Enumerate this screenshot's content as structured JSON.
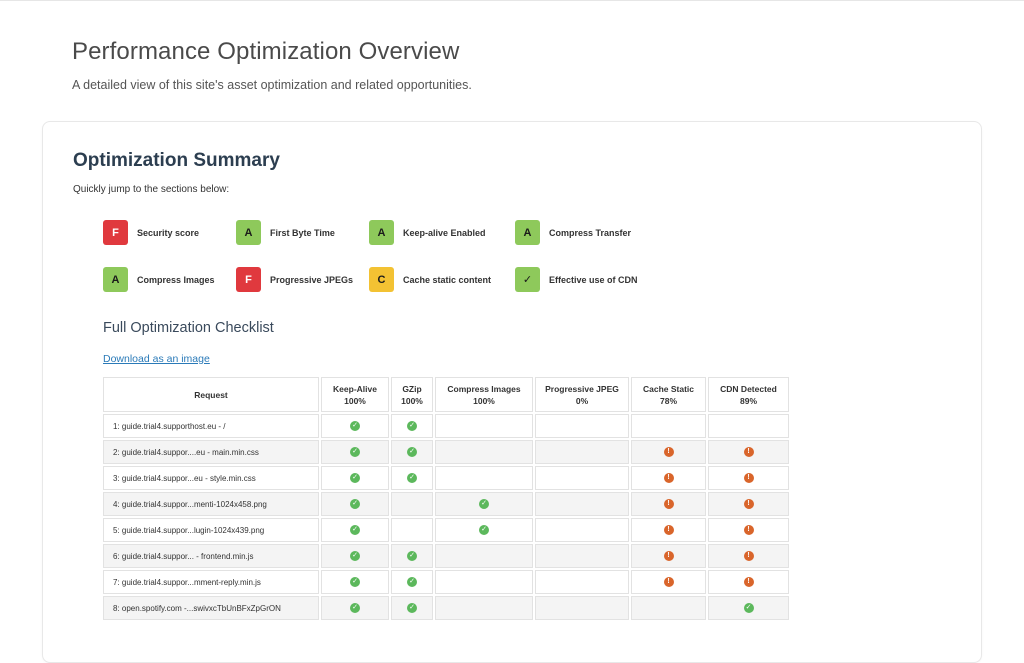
{
  "header": {
    "title": "Performance Optimization Overview",
    "subtitle": "A detailed view of this site's asset optimization and related opportunities."
  },
  "summary": {
    "title": "Optimization Summary",
    "subtitle": "Quickly jump to the sections below:",
    "grades": [
      {
        "grade": "F",
        "label": "Security score",
        "color": "#e0393e"
      },
      {
        "grade": "A",
        "label": "First Byte Time",
        "color": "#8ec95b"
      },
      {
        "grade": "A",
        "label": "Keep-alive Enabled",
        "color": "#8ec95b"
      },
      {
        "grade": "A",
        "label": "Compress Transfer",
        "color": "#8ec95b"
      },
      {
        "grade": "A",
        "label": "Compress Images",
        "color": "#8ec95b"
      },
      {
        "grade": "F",
        "label": "Progressive JPEGs",
        "color": "#e0393e"
      },
      {
        "grade": "C",
        "label": "Cache static content",
        "color": "#f3c233"
      },
      {
        "grade": "✓",
        "label": "Effective use of CDN",
        "color": "#8ec95b"
      }
    ]
  },
  "checklist": {
    "title": "Full Optimization Checklist",
    "download_label": "Download as an image",
    "columns": [
      {
        "name": "Request",
        "score": ""
      },
      {
        "name": "Keep-Alive",
        "score": "100%"
      },
      {
        "name": "GZip",
        "score": "100%"
      },
      {
        "name": "Compress Images",
        "score": "100%"
      },
      {
        "name": "Progressive JPEG",
        "score": "0%"
      },
      {
        "name": "Cache Static",
        "score": "78%"
      },
      {
        "name": "CDN Detected",
        "score": "89%"
      }
    ],
    "rows": [
      {
        "request": "1: guide.trial4.supporthost.eu - /",
        "cells": [
          "ok",
          "ok",
          "",
          "",
          "",
          ""
        ]
      },
      {
        "request": "2: guide.trial4.suppor....eu - main.min.css",
        "cells": [
          "ok",
          "ok",
          "",
          "",
          "warn",
          "warn"
        ]
      },
      {
        "request": "3: guide.trial4.suppor...eu - style.min.css",
        "cells": [
          "ok",
          "ok",
          "",
          "",
          "warn",
          "warn"
        ]
      },
      {
        "request": "4: guide.trial4.suppor...menti-1024x458.png",
        "cells": [
          "ok",
          "",
          "ok",
          "",
          "warn",
          "warn"
        ]
      },
      {
        "request": "5: guide.trial4.suppor...lugin-1024x439.png",
        "cells": [
          "ok",
          "",
          "ok",
          "",
          "warn",
          "warn"
        ]
      },
      {
        "request": "6: guide.trial4.suppor... - frontend.min.js",
        "cells": [
          "ok",
          "ok",
          "",
          "",
          "warn",
          "warn"
        ]
      },
      {
        "request": "7: guide.trial4.suppor...mment-reply.min.js",
        "cells": [
          "ok",
          "ok",
          "",
          "",
          "warn",
          "warn"
        ]
      },
      {
        "request": "8: open.spotify.com -...swivxcTbUnBFxZpGrON",
        "cells": [
          "ok",
          "ok",
          "",
          "",
          "",
          "ok"
        ]
      }
    ]
  }
}
